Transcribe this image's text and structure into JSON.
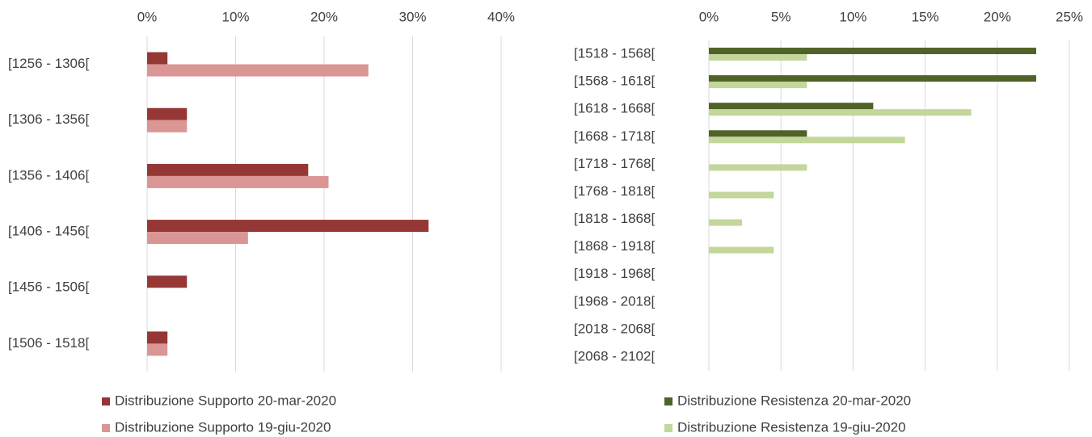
{
  "chart_data": [
    {
      "type": "barh",
      "categories": [
        "[1256 - 1306[",
        "[1306 - 1356[",
        "[1356 - 1406[",
        "[1406 - 1456[",
        "[1456 - 1506[",
        "[1506 - 1518["
      ],
      "series": [
        {
          "name": "Distribuzione Supporto 20-mar-2020",
          "color": "#953735",
          "values": [
            2.3,
            4.5,
            18.2,
            31.8,
            4.5,
            2.3
          ]
        },
        {
          "name": "Distribuzione Supporto 19-giu-2020",
          "color": "#d99694",
          "values": [
            25,
            4.5,
            20.5,
            11.4,
            0,
            2.3
          ]
        }
      ],
      "xlim": [
        0,
        40
      ],
      "xticks": [
        {
          "value": 0,
          "label": "0%"
        },
        {
          "value": 10,
          "label": "10%"
        },
        {
          "value": 20,
          "label": "20%"
        },
        {
          "value": 30,
          "label": "30%"
        },
        {
          "value": 40,
          "label": "40%"
        }
      ],
      "grid": true,
      "legend": "bottom"
    },
    {
      "type": "barh",
      "categories": [
        "[1518 - 1568[",
        "[1568 - 1618[",
        "[1618 - 1668[",
        "[1668 - 1718[",
        "[1718 - 1768[",
        "[1768 - 1818[",
        "[1818 - 1868[",
        "[1868 - 1918[",
        "[1918 - 1968[",
        "[1968 - 2018[",
        "[2018 - 2068[",
        "[2068 - 2102["
      ],
      "series": [
        {
          "name": "Distribuzione Resistenza 20-mar-2020",
          "color": "#4f6228",
          "values": [
            22.7,
            22.7,
            11.4,
            6.8,
            0,
            0,
            0,
            0,
            0,
            0,
            0,
            0
          ]
        },
        {
          "name": "Distribuzione Resistenza 19-giu-2020",
          "color": "#c3d69b",
          "values": [
            6.8,
            6.8,
            18.2,
            13.6,
            6.8,
            4.5,
            2.3,
            4.5,
            0,
            0,
            0,
            0
          ]
        }
      ],
      "xlim": [
        0,
        25
      ],
      "xticks": [
        {
          "value": 0,
          "label": "0%"
        },
        {
          "value": 5,
          "label": "5%"
        },
        {
          "value": 10,
          "label": "10%"
        },
        {
          "value": 15,
          "label": "15%"
        },
        {
          "value": 20,
          "label": "20%"
        },
        {
          "value": 25,
          "label": "25%"
        }
      ],
      "grid": true,
      "legend": "bottom"
    }
  ]
}
